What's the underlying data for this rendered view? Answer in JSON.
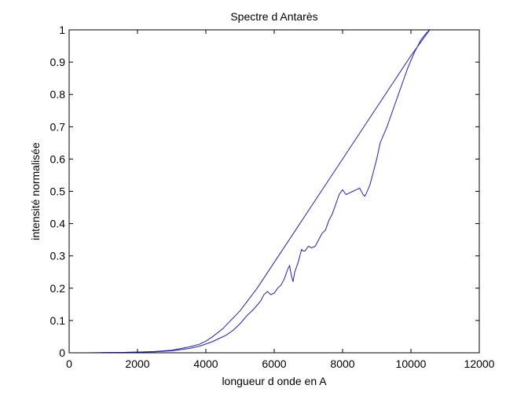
{
  "chart_data": {
    "type": "line",
    "title": "Spectre d Antarès",
    "xlabel": "longueur d onde en A",
    "ylabel": "intensité normalisée",
    "xlim": [
      0,
      12000
    ],
    "ylim": [
      0,
      1
    ],
    "xticks": [
      0,
      2000,
      4000,
      6000,
      8000,
      10000,
      12000
    ],
    "xtick_labels": [
      "0",
      "2000",
      "4000",
      "6000",
      "8000",
      "10000",
      "12000"
    ],
    "yticks": [
      0,
      0.1,
      0.2,
      0.3,
      0.4,
      0.5,
      0.6,
      0.7,
      0.8,
      0.9,
      1
    ],
    "ytick_labels": [
      "0",
      "0.1",
      "0.2",
      "0.3",
      "0.4",
      "0.5",
      "0.6",
      "0.7",
      "0.8",
      "0.9",
      "1"
    ],
    "grid": false,
    "colors": {
      "line": "#1f1fc8",
      "axes": "#000000",
      "background": "#ffffff"
    },
    "series": [
      {
        "x": [
          500,
          1000,
          1500,
          2000,
          2500,
          3000,
          3500,
          3800,
          4000,
          4200,
          4500,
          5000,
          5500,
          6000,
          6500,
          7000,
          7500,
          8000,
          8500,
          9000,
          9500,
          10000,
          10550
        ],
        "values": [
          0,
          0.0005,
          0.001,
          0.002,
          0.004,
          0.008,
          0.018,
          0.026,
          0.036,
          0.05,
          0.075,
          0.13,
          0.2,
          0.28,
          0.36,
          0.44,
          0.52,
          0.6,
          0.68,
          0.76,
          0.84,
          0.92,
          1.0
        ]
      },
      {
        "x": [
          500,
          1000,
          1500,
          2000,
          2500,
          3000,
          3500,
          3800,
          4000,
          4200,
          4400,
          4600,
          4800,
          5000,
          5200,
          5400,
          5600,
          5700,
          5800,
          5900,
          6000,
          6100,
          6200,
          6300,
          6400,
          6450,
          6500,
          6550,
          6600,
          6700,
          6750,
          6800,
          6850,
          6900,
          7000,
          7100,
          7200,
          7300,
          7400,
          7500,
          7600,
          7700,
          7800,
          7900,
          8000,
          8100,
          8200,
          8300,
          8400,
          8500,
          8600,
          8650,
          8700,
          8800,
          8900,
          9000,
          9100,
          9300,
          9500,
          9700,
          9900,
          10100,
          10300,
          10450,
          10550
        ],
        "values": [
          0,
          0.0005,
          0.001,
          0.002,
          0.003,
          0.006,
          0.013,
          0.02,
          0.027,
          0.035,
          0.045,
          0.055,
          0.07,
          0.09,
          0.115,
          0.135,
          0.16,
          0.18,
          0.19,
          0.18,
          0.185,
          0.2,
          0.21,
          0.23,
          0.26,
          0.27,
          0.24,
          0.22,
          0.25,
          0.28,
          0.3,
          0.32,
          0.315,
          0.315,
          0.33,
          0.325,
          0.33,
          0.35,
          0.37,
          0.38,
          0.41,
          0.43,
          0.46,
          0.49,
          0.505,
          0.49,
          0.495,
          0.5,
          0.505,
          0.51,
          0.49,
          0.485,
          0.495,
          0.52,
          0.56,
          0.6,
          0.65,
          0.7,
          0.76,
          0.82,
          0.88,
          0.93,
          0.97,
          0.99,
          1.0
        ]
      }
    ]
  }
}
